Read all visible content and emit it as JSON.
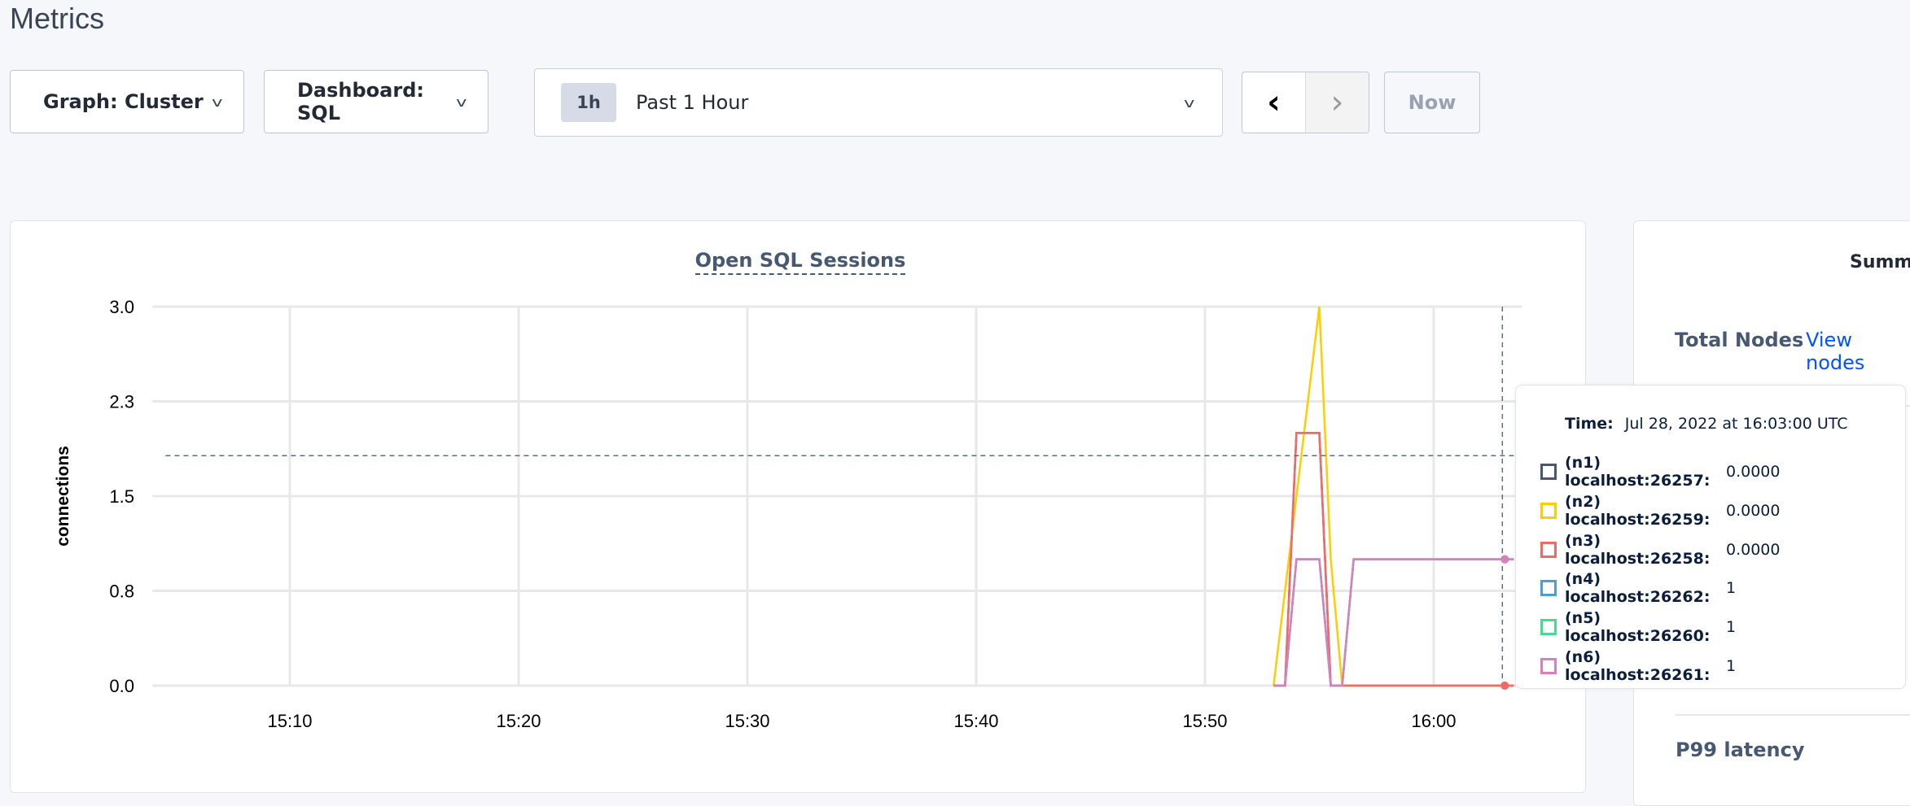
{
  "page": {
    "title": "Metrics"
  },
  "toolbar": {
    "graph_label": "Graph: Cluster",
    "dashboard_label": "Dashboard: SQL",
    "time_badge": "1h",
    "time_label": "Past 1 Hour",
    "prev_icon": "chevron-left-icon",
    "next_icon": "chevron-right-icon",
    "now_label": "Now"
  },
  "chart_data": {
    "type": "line",
    "title": "Open SQL Sessions",
    "ylabel": "connections",
    "xlabel": "",
    "ylim": [
      0,
      3
    ],
    "xlim": [
      "15:04",
      "16:04"
    ],
    "y_ticks": [
      {
        "value": 0,
        "label": "0.0"
      },
      {
        "value": 0.75,
        "label": "0.8"
      },
      {
        "value": 1.5,
        "label": "1.5"
      },
      {
        "value": 2.25,
        "label": "2.3"
      },
      {
        "value": 3,
        "label": "3.0"
      }
    ],
    "x_ticks": [
      "15:10",
      "15:20",
      "15:30",
      "15:40",
      "15:50",
      "16:00"
    ],
    "grid": true,
    "hover": {
      "time": "16:03:00",
      "value_crosshair": 1.82
    },
    "series": [
      {
        "name": "(n1) localhost:26257",
        "color": "#475872",
        "x": [
          "15:53:00",
          "15:53:30",
          "15:54:00",
          "15:55:00",
          "15:55:30",
          "16:03:30"
        ],
        "values": [
          0,
          0,
          2,
          2,
          0,
          0
        ]
      },
      {
        "name": "(n2) localhost:26259",
        "color": "#FFCD02",
        "x": [
          "15:53:00",
          "15:55:00",
          "15:55:30",
          "15:56:00",
          "16:03:30"
        ],
        "values": [
          0,
          3,
          1,
          0,
          0
        ]
      },
      {
        "name": "(n3) localhost:26258",
        "color": "#F16969",
        "x": [
          "15:53:00",
          "15:53:30",
          "15:54:00",
          "15:55:00",
          "15:55:30",
          "16:03:30"
        ],
        "values": [
          0,
          0,
          2,
          2,
          0,
          0
        ]
      },
      {
        "name": "(n4) localhost:26262",
        "color": "#4E9FD1",
        "x": [
          "15:53:00",
          "15:53:30",
          "15:54:00",
          "15:55:00",
          "15:55:30",
          "15:56:00",
          "15:56:30",
          "16:03:30"
        ],
        "values": [
          0,
          0,
          1,
          1,
          0,
          0,
          1,
          1
        ]
      },
      {
        "name": "(n5) localhost:26260",
        "color": "#49D990",
        "x": [
          "15:53:00",
          "15:53:30",
          "15:54:00",
          "15:55:00",
          "15:55:30",
          "15:56:00",
          "15:56:30",
          "16:03:30"
        ],
        "values": [
          0,
          0,
          1,
          1,
          0,
          0,
          1,
          1
        ]
      },
      {
        "name": "(n6) localhost:26261",
        "color": "#D77FBF",
        "x": [
          "15:53:00",
          "15:53:30",
          "15:54:00",
          "15:55:00",
          "15:55:30",
          "15:56:00",
          "15:56:30",
          "16:03:30"
        ],
        "values": [
          0,
          0,
          1,
          1,
          0,
          0,
          1,
          1
        ]
      }
    ]
  },
  "tooltip": {
    "time_label": "Time:",
    "time_value": "Jul 28, 2022 at 16:03:00 UTC",
    "rows": [
      {
        "label": "(n1) localhost:26257:",
        "value": "0.0000"
      },
      {
        "label": "(n2) localhost:26259:",
        "value": "0.0000"
      },
      {
        "label": "(n3) localhost:26258:",
        "value": "0.0000"
      },
      {
        "label": "(n4) localhost:26262:",
        "value": "1"
      },
      {
        "label": "(n5) localhost:26260:",
        "value": "1"
      },
      {
        "label": "(n6) localhost:26261:",
        "value": "1"
      }
    ]
  },
  "summary": {
    "title": "Summ",
    "total_nodes_label": "Total Nodes",
    "view_nodes_link": "View nodes",
    "p99_label": "P99 latency"
  }
}
